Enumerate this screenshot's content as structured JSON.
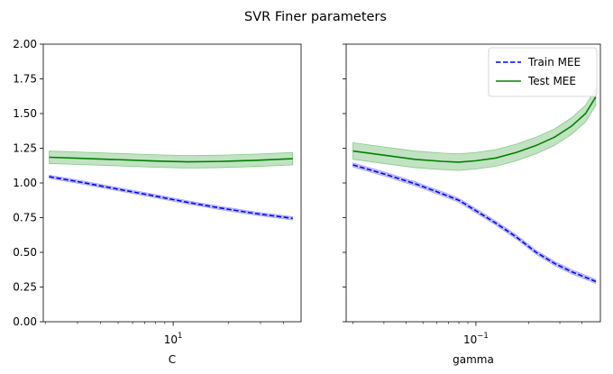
{
  "figure": {
    "title": "SVR Finer parameters"
  },
  "colors": {
    "train": "#0000ff",
    "test": "#008000",
    "band_train": "#7f7fff",
    "band_test": "#4caf50"
  },
  "legend": {
    "placement": "upper-right",
    "entries": [
      {
        "label": "Train MEE",
        "series": "train",
        "style": "dashed"
      },
      {
        "label": "Test MEE",
        "series": "test",
        "style": "solid"
      }
    ]
  },
  "chart_data": [
    {
      "type": "line",
      "xscale": "log",
      "xlabel": "C",
      "ylabel": "",
      "xlim": [
        1.95,
        50
      ],
      "ylim": [
        0,
        2
      ],
      "y_ticks": [
        "0.00",
        "0.25",
        "0.50",
        "0.75",
        "1.00",
        "1.25",
        "1.50",
        "1.75",
        "2.00"
      ],
      "y_tick_values": [
        0,
        0.25,
        0.5,
        0.75,
        1.0,
        1.25,
        1.5,
        1.75,
        2.0
      ],
      "x_major_ticks": [
        {
          "value": 10,
          "base": "10",
          "exp": "1"
        }
      ],
      "x_minor_ticks": [
        2,
        3,
        4,
        5,
        6,
        7,
        8,
        9,
        20,
        30,
        40
      ],
      "x": [
        2.1,
        3.0,
        5.0,
        8.0,
        12.0,
        18.0,
        28.0,
        45.0
      ],
      "series": [
        {
          "name": "Train MEE",
          "key": "train",
          "values": [
            1.045,
            1.01,
            0.955,
            0.905,
            0.86,
            0.82,
            0.78,
            0.745
          ],
          "band": 0.012
        },
        {
          "name": "Test MEE",
          "key": "test",
          "values": [
            1.185,
            1.178,
            1.168,
            1.158,
            1.152,
            1.155,
            1.163,
            1.175
          ],
          "band": 0.045
        }
      ],
      "legend": false
    },
    {
      "type": "line",
      "xscale": "log",
      "xlabel": "gamma",
      "ylabel": "",
      "xlim": [
        0.0183,
        0.51
      ],
      "ylim": [
        0,
        2
      ],
      "y_ticks": [],
      "y_tick_values": [
        0,
        0.25,
        0.5,
        0.75,
        1.0,
        1.25,
        1.5,
        1.75,
        2.0
      ],
      "x_major_ticks": [
        {
          "value": 0.1,
          "base": "10",
          "exp": "−1"
        }
      ],
      "x_minor_ticks": [
        0.02,
        0.03,
        0.04,
        0.05,
        0.06,
        0.07,
        0.08,
        0.09,
        0.2,
        0.3,
        0.4
      ],
      "x": [
        0.02,
        0.03,
        0.045,
        0.065,
        0.08,
        0.1,
        0.13,
        0.17,
        0.22,
        0.28,
        0.35,
        0.42,
        0.48
      ],
      "series": [
        {
          "name": "Train MEE",
          "key": "train",
          "values": [
            1.13,
            1.065,
            0.995,
            0.92,
            0.875,
            0.8,
            0.71,
            0.61,
            0.5,
            0.42,
            0.36,
            0.32,
            0.29
          ],
          "band": 0.015
        },
        {
          "name": "Test MEE",
          "key": "test",
          "values": [
            1.23,
            1.2,
            1.17,
            1.155,
            1.15,
            1.16,
            1.18,
            1.22,
            1.27,
            1.33,
            1.41,
            1.5,
            1.62
          ],
          "band": 0.06
        }
      ],
      "legend": true
    }
  ]
}
